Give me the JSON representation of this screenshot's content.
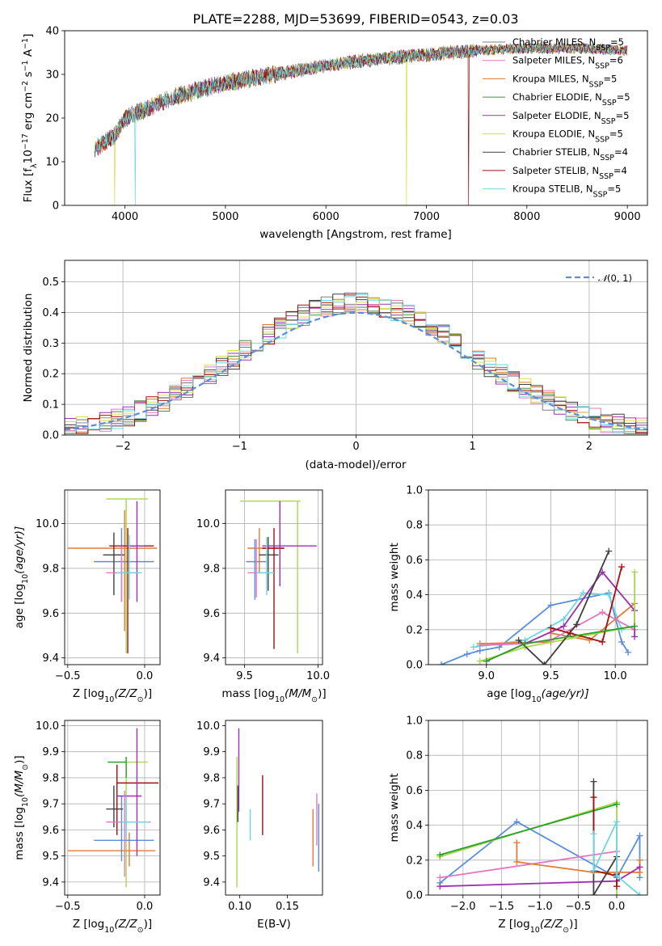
{
  "colors": {
    "chabrier_miles": "#7f7f7f",
    "salpeter_miles": "#e377c2",
    "kroupa_miles": "#d9792a",
    "chabrier_elodie": "#4d8a4d",
    "salpeter_elodie": "#9b30b0",
    "kroupa_elodie": "#d8e04a",
    "chabrier_stelib": "#404040",
    "salpeter_stelib": "#a01010",
    "kroupa_stelib": "#6ed6e0",
    "gauss": "#5b8ed8",
    "blue": "#5b8ed8",
    "orange": "#e07b39",
    "pink": "#e377c2",
    "purple": "#9b30b0",
    "dark": "#404040",
    "red": "#a01010",
    "cyan": "#6ed6e0",
    "lime": "#a8d84a",
    "green": "#2ca02c"
  },
  "chart_data": [
    {
      "type": "line",
      "title": "PLATE=2288, MJD=53699, FIBERID=0543, z=0.03",
      "xlabel": "wavelength [Angstrom, rest frame]",
      "ylabel_parts": [
        "Flux [f",
        "λ",
        "10",
        "−17",
        " erg cm",
        "−2",
        " s",
        "−1",
        " A",
        "−1",
        "]"
      ],
      "xlim": [
        3400,
        9200
      ],
      "ylim": [
        0,
        40
      ],
      "xticks": [
        4000,
        5000,
        6000,
        7000,
        8000,
        9000
      ],
      "yticks": [
        0,
        10,
        20,
        30,
        40
      ],
      "grid": false,
      "legend": "top-right",
      "continuum": [
        [
          3700,
          13
        ],
        [
          3900,
          16
        ],
        [
          4000,
          20
        ],
        [
          4200,
          22
        ],
        [
          4500,
          25
        ],
        [
          5000,
          28
        ],
        [
          5500,
          30
        ],
        [
          6000,
          32
        ],
        [
          6500,
          33.5
        ],
        [
          7000,
          34.5
        ],
        [
          7500,
          35.5
        ],
        [
          8000,
          36
        ],
        [
          8500,
          36
        ],
        [
          9000,
          35.5
        ]
      ],
      "dropouts": [
        [
          4100,
          "kroupa_stelib"
        ],
        [
          6800,
          "kroupa_elodie"
        ],
        [
          7420,
          "salpeter_stelib"
        ],
        [
          3900,
          "kroupa_elodie"
        ]
      ],
      "series": [
        {
          "name_parts": [
            "Chabrier MILES, N",
            "SSP",
            "=5"
          ],
          "color_key": "chabrier_miles"
        },
        {
          "name_parts": [
            "Salpeter MILES, N",
            "SSP",
            "=6"
          ],
          "color_key": "salpeter_miles"
        },
        {
          "name_parts": [
            "Kroupa MILES, N",
            "SSP",
            "=5"
          ],
          "color_key": "kroupa_miles"
        },
        {
          "name_parts": [
            "Chabrier ELODIE, N",
            "SSP",
            "=5"
          ],
          "color_key": "chabrier_elodie"
        },
        {
          "name_parts": [
            "Salpeter ELODIE, N",
            "SSP",
            "=5"
          ],
          "color_key": "salpeter_elodie"
        },
        {
          "name_parts": [
            "Kroupa ELODIE, N",
            "SSP",
            "=5"
          ],
          "color_key": "kroupa_elodie"
        },
        {
          "name_parts": [
            "Chabrier STELIB, N",
            "SSP",
            "=4"
          ],
          "color_key": "chabrier_stelib"
        },
        {
          "name_parts": [
            "Salpeter STELIB, N",
            "SSP",
            "=4"
          ],
          "color_key": "salpeter_stelib"
        },
        {
          "name_parts": [
            "Kroupa STELIB, N",
            "SSP",
            "=5"
          ],
          "color_key": "kroupa_stelib"
        }
      ]
    },
    {
      "type": "histogram",
      "xlabel": "(data-model)/error",
      "ylabel": "Normed distribution",
      "xlim": [
        -2.5,
        2.5
      ],
      "ylim": [
        0,
        0.57
      ],
      "xticks": [
        -2,
        -1,
        0,
        1,
        2
      ],
      "yticks": [
        0.0,
        0.1,
        0.2,
        0.3,
        0.4,
        0.5
      ],
      "grid": true,
      "legend": "top-right",
      "legend_parts": [
        "𝒩",
        "(0, 1)"
      ],
      "bin_width": 0.1,
      "bin_start": -2.5,
      "series": [
        {
          "color_key": "chabrier_miles",
          "seed": 1
        },
        {
          "color_key": "salpeter_miles",
          "seed": 2
        },
        {
          "color_key": "kroupa_miles",
          "seed": 3
        },
        {
          "color_key": "chabrier_elodie",
          "seed": 4
        },
        {
          "color_key": "salpeter_elodie",
          "seed": 5
        },
        {
          "color_key": "kroupa_elodie",
          "seed": 6
        },
        {
          "color_key": "chabrier_stelib",
          "seed": 7
        },
        {
          "color_key": "salpeter_stelib",
          "seed": 8
        },
        {
          "color_key": "kroupa_stelib",
          "seed": 9
        }
      ]
    },
    {
      "type": "errorbar",
      "xlabel_parts": [
        "Z [log",
        "10",
        "(Z/Z",
        "⊙",
        ")]"
      ],
      "ylabel_parts": [
        "age  [log",
        "10",
        "(age/yr)]"
      ],
      "xlim": [
        -0.52,
        0.1
      ],
      "ylim": [
        9.37,
        10.15
      ],
      "xticks": [
        -0.5,
        0.0
      ],
      "xtick_labels": [
        "−0.5",
        "0.0"
      ],
      "yticks": [
        9.4,
        9.6,
        9.8,
        10.0
      ],
      "grid": true,
      "points": [
        {
          "x": -0.12,
          "y": 10.11,
          "xlo": -0.25,
          "xhi": 0.02,
          "ylo": 9.42,
          "yhi": 10.11,
          "color_key": "lime"
        },
        {
          "x": -0.13,
          "y": 9.89,
          "xlo": -0.5,
          "xhi": 0.08,
          "ylo": 9.52,
          "yhi": 10.06,
          "color_key": "orange"
        },
        {
          "x": -0.15,
          "y": 9.83,
          "xlo": -0.33,
          "xhi": 0.06,
          "ylo": 9.65,
          "yhi": 9.98,
          "color_key": "blue"
        },
        {
          "x": -0.2,
          "y": 9.86,
          "xlo": -0.27,
          "xhi": -0.13,
          "ylo": 9.68,
          "yhi": 9.96,
          "color_key": "dark"
        },
        {
          "x": -0.11,
          "y": 9.9,
          "xlo": -0.23,
          "xhi": 0.06,
          "ylo": 9.42,
          "yhi": 9.98,
          "color_key": "red"
        },
        {
          "x": -0.05,
          "y": 9.9,
          "xlo": -0.12,
          "xhi": 0.0,
          "ylo": 9.65,
          "yhi": 10.1,
          "color_key": "purple"
        },
        {
          "x": -0.15,
          "y": 9.78,
          "xlo": -0.25,
          "xhi": -0.05,
          "ylo": 9.65,
          "yhi": 9.9,
          "color_key": "pink"
        },
        {
          "x": -0.1,
          "y": 9.78,
          "xlo": -0.18,
          "xhi": -0.02,
          "ylo": 9.66,
          "yhi": 9.95,
          "color_key": "cyan"
        }
      ]
    },
    {
      "type": "errorbar",
      "xlabel_parts": [
        "mass [log",
        "10",
        "(M/M",
        "⊙",
        ")]"
      ],
      "ylabel_parts": [],
      "xlim": [
        9.37,
        10.03
      ],
      "ylim": [
        9.37,
        10.15
      ],
      "xticks": [
        9.5,
        10.0
      ],
      "xtick_labels": [
        "9.5",
        "10.0"
      ],
      "yticks": [
        9.4,
        9.6,
        9.8,
        10.0
      ],
      "grid": true,
      "points": [
        {
          "x": 9.86,
          "y": 10.1,
          "xlo": 9.47,
          "xhi": 9.88,
          "ylo": 9.42,
          "yhi": 10.1,
          "color_key": "lime"
        },
        {
          "x": 9.6,
          "y": 9.89,
          "xlo": 9.52,
          "xhi": 9.77,
          "ylo": 9.78,
          "yhi": 9.98,
          "color_key": "orange"
        },
        {
          "x": 9.57,
          "y": 9.83,
          "xlo": 9.51,
          "xhi": 9.65,
          "ylo": 9.66,
          "yhi": 9.93,
          "color_key": "blue"
        },
        {
          "x": 9.66,
          "y": 9.86,
          "xlo": 9.6,
          "xhi": 9.73,
          "ylo": 9.7,
          "yhi": 9.94,
          "color_key": "dark"
        },
        {
          "x": 9.7,
          "y": 9.89,
          "xlo": 9.62,
          "xhi": 9.77,
          "ylo": 9.44,
          "yhi": 9.98,
          "color_key": "red"
        },
        {
          "x": 9.74,
          "y": 9.9,
          "xlo": 9.62,
          "xhi": 9.99,
          "ylo": 9.72,
          "yhi": 10.1,
          "color_key": "purple"
        },
        {
          "x": 9.58,
          "y": 9.78,
          "xlo": 9.52,
          "xhi": 9.66,
          "ylo": 9.67,
          "yhi": 9.93,
          "color_key": "pink"
        },
        {
          "x": 9.65,
          "y": 9.78,
          "xlo": 9.58,
          "xhi": 9.7,
          "ylo": 9.68,
          "yhi": 9.94,
          "color_key": "cyan"
        }
      ]
    },
    {
      "type": "line",
      "xlabel_parts": [
        "age  [log",
        "10",
        "(age/yr)]"
      ],
      "ylabel": "mass weight",
      "xlim": [
        8.55,
        10.25
      ],
      "ylim": [
        0,
        1
      ],
      "xticks": [
        9.0,
        9.5,
        10.0
      ],
      "xtick_labels": [
        "9.0",
        "9.5",
        "10.0"
      ],
      "yticks": [
        0.0,
        0.2,
        0.4,
        0.6,
        0.8,
        1.0
      ],
      "grid": true,
      "series": [
        {
          "color_key": "blue",
          "x": [
            8.65,
            8.85,
            8.95,
            9.1,
            9.5,
            9.95,
            10.05,
            10.1
          ],
          "y": [
            0.0,
            0.06,
            0.08,
            0.1,
            0.34,
            0.41,
            0.13,
            0.07
          ]
        },
        {
          "color_key": "cyan",
          "x": [
            8.9,
            9.3,
            9.6,
            9.75,
            9.95,
            10.05
          ],
          "y": [
            0.1,
            0.14,
            0.26,
            0.41,
            0.4,
            0.2
          ]
        },
        {
          "color_key": "orange",
          "x": [
            8.95,
            9.5,
            9.5,
            9.8,
            10.15
          ],
          "y": [
            0.12,
            0.13,
            0.18,
            0.14,
            0.35
          ]
        },
        {
          "color_key": "pink",
          "x": [
            8.95,
            9.3,
            9.5,
            9.9,
            10.15
          ],
          "y": [
            0.11,
            0.12,
            0.14,
            0.3,
            0.2
          ]
        },
        {
          "color_key": "purple",
          "x": [
            9.0,
            9.6,
            9.9,
            10.15,
            10.15
          ],
          "y": [
            0.02,
            0.22,
            0.53,
            0.31,
            0.16
          ]
        },
        {
          "color_key": "lime",
          "x": [
            8.95,
            9.3,
            10.15,
            10.15
          ],
          "y": [
            0.02,
            0.1,
            0.22,
            0.53
          ]
        },
        {
          "color_key": "dark",
          "x": [
            9.25,
            9.45,
            9.7,
            9.95
          ],
          "y": [
            0.14,
            0.0,
            0.23,
            0.65
          ]
        },
        {
          "color_key": "red",
          "x": [
            9.5,
            9.65,
            9.9,
            10.05
          ],
          "y": [
            0.21,
            0.18,
            0.13,
            0.56
          ]
        },
        {
          "color_key": "green",
          "x": [
            9.0,
            9.3,
            10.15
          ],
          "y": [
            0.02,
            0.12,
            0.22
          ]
        }
      ]
    },
    {
      "type": "errorbar",
      "xlabel_parts": [
        "Z [log",
        "10",
        "(Z/Z",
        "⊙",
        ")]"
      ],
      "ylabel_parts": [
        "mass [log",
        "10",
        "(M/M",
        "⊙",
        ")]"
      ],
      "xlim": [
        -0.52,
        0.1
      ],
      "ylim": [
        9.35,
        10.02
      ],
      "xticks": [
        -0.5,
        0.0
      ],
      "xtick_labels": [
        "−0.5",
        "0.0"
      ],
      "yticks": [
        9.4,
        9.5,
        9.6,
        9.7,
        9.8,
        9.9,
        10.0
      ],
      "grid": true,
      "points": [
        {
          "x": -0.12,
          "y": 9.86,
          "xlo": -0.24,
          "xhi": 0.02,
          "ylo": 9.38,
          "yhi": 9.88,
          "color_key": "lime"
        },
        {
          "x": -0.1,
          "y": 9.52,
          "xlo": -0.5,
          "xhi": 0.07,
          "ylo": 9.46,
          "yhi": 9.59,
          "color_key": "orange"
        },
        {
          "x": -0.15,
          "y": 9.56,
          "xlo": -0.33,
          "xhi": 0.06,
          "ylo": 9.48,
          "yhi": 9.73,
          "color_key": "blue"
        },
        {
          "x": -0.2,
          "y": 9.68,
          "xlo": -0.25,
          "xhi": -0.14,
          "ylo": 9.61,
          "yhi": 9.77,
          "color_key": "dark"
        },
        {
          "x": -0.18,
          "y": 9.78,
          "xlo": -0.18,
          "xhi": 0.09,
          "ylo": 9.58,
          "yhi": 9.85,
          "color_key": "red"
        },
        {
          "x": -0.05,
          "y": 9.73,
          "xlo": -0.18,
          "xhi": -0.02,
          "ylo": 9.5,
          "yhi": 9.99,
          "color_key": "purple"
        },
        {
          "x": -0.13,
          "y": 9.63,
          "xlo": -0.25,
          "xhi": 0.04,
          "ylo": 9.42,
          "yhi": 9.75,
          "color_key": "pink"
        },
        {
          "x": -0.12,
          "y": 9.63,
          "xlo": -0.15,
          "xhi": 0.03,
          "ylo": 9.57,
          "yhi": 9.73,
          "color_key": "cyan"
        },
        {
          "x": -0.12,
          "y": 9.86,
          "xlo": -0.24,
          "xhi": -0.12,
          "ylo": 9.8,
          "yhi": 9.88,
          "color_key": "green"
        }
      ]
    },
    {
      "type": "errorbar",
      "xlabel": "E(B-V)",
      "ylabel_parts": [],
      "xlim": [
        0.085,
        0.187
      ],
      "ylim": [
        9.35,
        10.02
      ],
      "xticks": [
        0.1,
        0.15
      ],
      "xtick_labels": [
        "0.10",
        "0.15"
      ],
      "yticks": [
        9.4,
        9.5,
        9.6,
        9.7,
        9.8,
        9.9,
        10.0
      ],
      "grid": false,
      "points": [
        {
          "x": 0.097,
          "y": 9.68,
          "ylo": 9.38,
          "yhi": 9.88,
          "color_key": "lime"
        },
        {
          "x": 0.098,
          "y": 9.7,
          "ylo": 9.63,
          "yhi": 9.77,
          "color_key": "dark"
        },
        {
          "x": 0.099,
          "y": 9.87,
          "ylo": 9.67,
          "yhi": 9.99,
          "color_key": "purple"
        },
        {
          "x": 0.111,
          "y": 9.62,
          "ylo": 9.56,
          "yhi": 9.68,
          "color_key": "cyan"
        },
        {
          "x": 0.124,
          "y": 9.69,
          "ylo": 9.58,
          "yhi": 9.81,
          "color_key": "red"
        },
        {
          "x": 0.177,
          "y": 9.62,
          "ylo": 9.46,
          "yhi": 9.68,
          "color_key": "orange"
        },
        {
          "x": 0.181,
          "y": 9.64,
          "ylo": 9.54,
          "yhi": 9.74,
          "color_key": "pink"
        },
        {
          "x": 0.183,
          "y": 9.56,
          "ylo": 9.44,
          "yhi": 9.7,
          "color_key": "blue"
        }
      ]
    },
    {
      "type": "line",
      "xlabel_parts": [
        "Z [log",
        "10",
        "(Z/Z",
        "⊙",
        ")]"
      ],
      "ylabel": "mass weight",
      "xlim": [
        -2.45,
        0.4
      ],
      "ylim": [
        0,
        1
      ],
      "xticks": [
        -2.0,
        -1.5,
        -1.0,
        -0.5,
        0.0
      ],
      "xtick_labels": [
        "−2.0",
        "−1.5",
        "−1.0",
        "−0.5",
        "0.0"
      ],
      "yticks": [
        0.0,
        0.2,
        0.4,
        0.6,
        0.8,
        1.0
      ],
      "grid": true,
      "series": [
        {
          "color_key": "blue",
          "x": [
            -2.3,
            -1.3,
            0.0,
            0.3,
            0.3
          ],
          "y": [
            0.07,
            0.42,
            0.1,
            0.34,
            0.1
          ]
        },
        {
          "color_key": "lime",
          "x": [
            -2.3,
            0.0,
            0.0
          ],
          "y": [
            0.22,
            0.53,
            0.0
          ]
        },
        {
          "color_key": "green",
          "x": [
            -2.3,
            0.0
          ],
          "y": [
            0.23,
            0.52
          ]
        },
        {
          "color_key": "pink",
          "x": [
            -2.3,
            0.0
          ],
          "y": [
            0.1,
            0.25
          ]
        },
        {
          "color_key": "orange",
          "x": [
            -1.3,
            -1.3,
            -0.3,
            0.3,
            0.3
          ],
          "y": [
            0.3,
            0.19,
            0.13,
            0.13,
            0.2
          ]
        },
        {
          "color_key": "purple",
          "x": [
            -2.3,
            0.0,
            0.3
          ],
          "y": [
            0.05,
            0.08,
            0.16
          ]
        },
        {
          "color_key": "dark",
          "x": [
            -0.3,
            -0.3,
            0.0,
            0.0
          ],
          "y": [
            0.65,
            0.0,
            0.22,
            0.12
          ]
        },
        {
          "color_key": "red",
          "x": [
            -0.3,
            -0.3,
            0.0,
            0.0
          ],
          "y": [
            0.56,
            0.14,
            0.11,
            0.05
          ]
        },
        {
          "color_key": "cyan",
          "x": [
            -0.3,
            -0.3,
            0.0,
            0.0,
            0.3
          ],
          "y": [
            0.35,
            0.14,
            0.42,
            0.11,
            0.0
          ]
        }
      ]
    }
  ]
}
